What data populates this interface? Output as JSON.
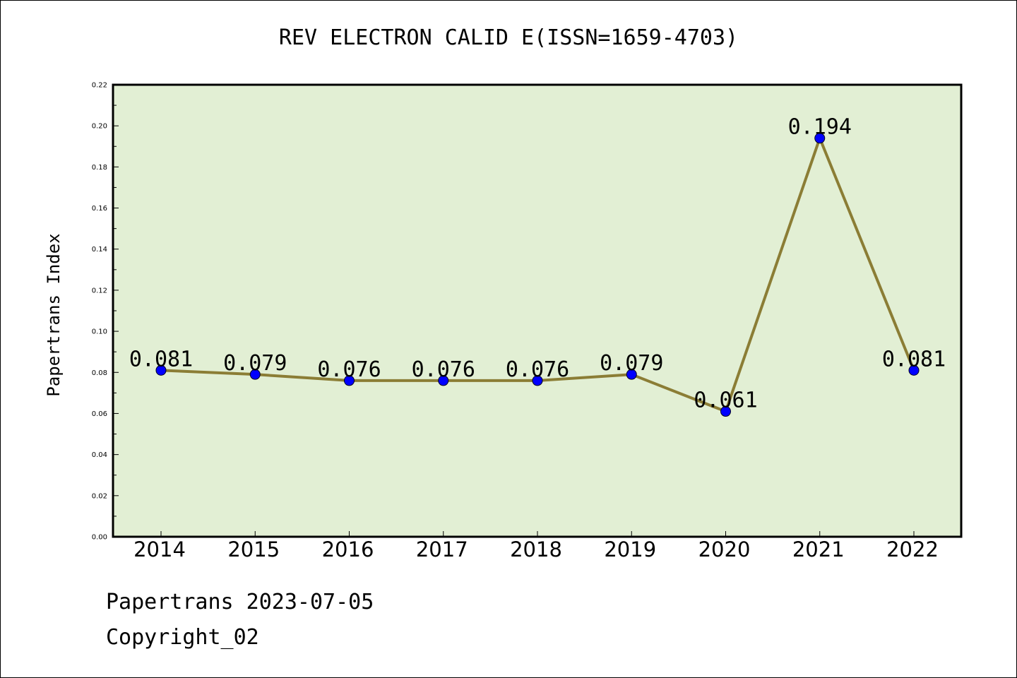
{
  "chart_data": {
    "type": "line",
    "title": "REV ELECTRON CALID E(ISSN=1659-4703)",
    "ylabel": "Papertrans Index",
    "xlabel": "",
    "categories": [
      "2014",
      "2015",
      "2016",
      "2017",
      "2018",
      "2019",
      "2020",
      "2021",
      "2022"
    ],
    "values": [
      0.081,
      0.079,
      0.076,
      0.076,
      0.076,
      0.079,
      0.061,
      0.194,
      0.081
    ],
    "data_labels": [
      "0.081",
      "0.079",
      "0.076",
      "0.076",
      "0.076",
      "0.079",
      "0.061",
      "0.194",
      "0.081"
    ],
    "ylim": [
      0,
      0.22
    ],
    "yticks": [
      "0.00",
      "0.02",
      "0.04",
      "0.06",
      "0.08",
      "0.10",
      "0.12",
      "0.14",
      "0.16",
      "0.18",
      "0.20",
      "0.22"
    ],
    "grid": false,
    "legend": "none",
    "colors": {
      "plot_background": "#e2efd4",
      "line": "#8b7d35",
      "marker": "#0000ff"
    }
  },
  "footer": {
    "source": "Papertrans 2023-07-05",
    "copyright": "Copyright_02"
  }
}
